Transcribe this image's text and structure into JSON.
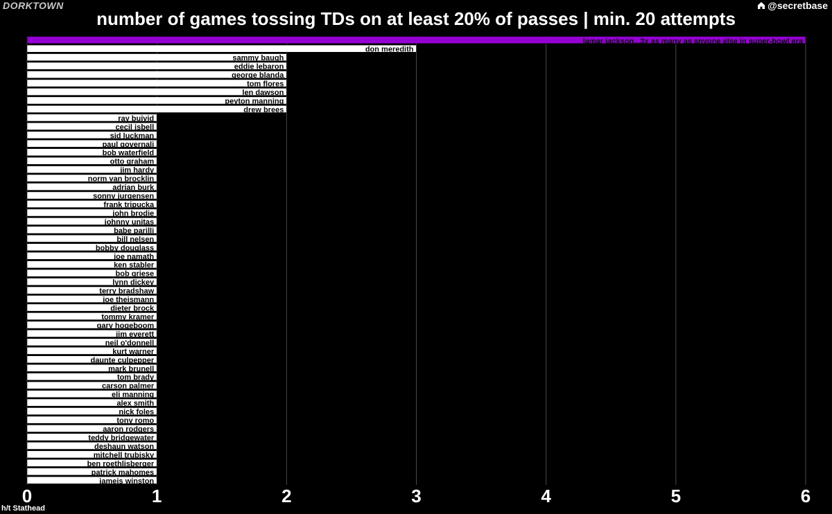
{
  "header": {
    "brand": "DORKTOWN",
    "handle": "@secretbase",
    "handle_icon": "home-icon"
  },
  "footer": {
    "caption": "h/t Stathead"
  },
  "chart_data": {
    "type": "bar",
    "orientation": "horizontal",
    "title": "number of games tossing TDs on at least 20% of passes | min. 20 attempts",
    "xlabel": "",
    "ylabel": "",
    "xlim": [
      0,
      6
    ],
    "xticks": [
      0,
      1,
      2,
      3,
      4,
      5,
      6
    ],
    "grid": true,
    "highlight_color": "#9400d3",
    "bar_color": "#ffffff",
    "categories": [
      "lamar jackson...3x as many as anyone else in super-bowl era",
      "don meredith",
      "sammy baugh",
      "eddie lebaron",
      "george blanda",
      "tom flores",
      "len dawson",
      "peyton manning",
      "drew brees",
      "ray buivid",
      "cecil isbell",
      "sid luckman",
      "paul governali",
      "bob waterfield",
      "otto graham",
      "jim hardy",
      "norm van brocklin",
      "adrian burk",
      "sonny jurgensen",
      "frank tripucka",
      "john brodie",
      "johnny unitas",
      "babe parilli",
      "bill nelsen",
      "bobby douglass",
      "joe namath",
      "ken stabler",
      "bob griese",
      "lynn dickey",
      "terry bradshaw",
      "joe theismann",
      "dieter brock",
      "tommy kramer",
      "gary hogeboom",
      "jim everett",
      "neil o'donnell",
      "kurt warner",
      "daunte culpepper",
      "mark brunell",
      "tom brady",
      "carson palmer",
      "eli manning",
      "alex smith",
      "nick foles",
      "tony romo",
      "aaron rodgers",
      "teddy bridgewater",
      "deshaun watson",
      "mitchell trubisky",
      "ben roethlisberger",
      "patrick mahomes",
      "jameis winston"
    ],
    "values": [
      6,
      3,
      2,
      2,
      2,
      2,
      2,
      2,
      2,
      1,
      1,
      1,
      1,
      1,
      1,
      1,
      1,
      1,
      1,
      1,
      1,
      1,
      1,
      1,
      1,
      1,
      1,
      1,
      1,
      1,
      1,
      1,
      1,
      1,
      1,
      1,
      1,
      1,
      1,
      1,
      1,
      1,
      1,
      1,
      1,
      1,
      1,
      1,
      1,
      1,
      1,
      1
    ],
    "highlight_index": 0
  }
}
